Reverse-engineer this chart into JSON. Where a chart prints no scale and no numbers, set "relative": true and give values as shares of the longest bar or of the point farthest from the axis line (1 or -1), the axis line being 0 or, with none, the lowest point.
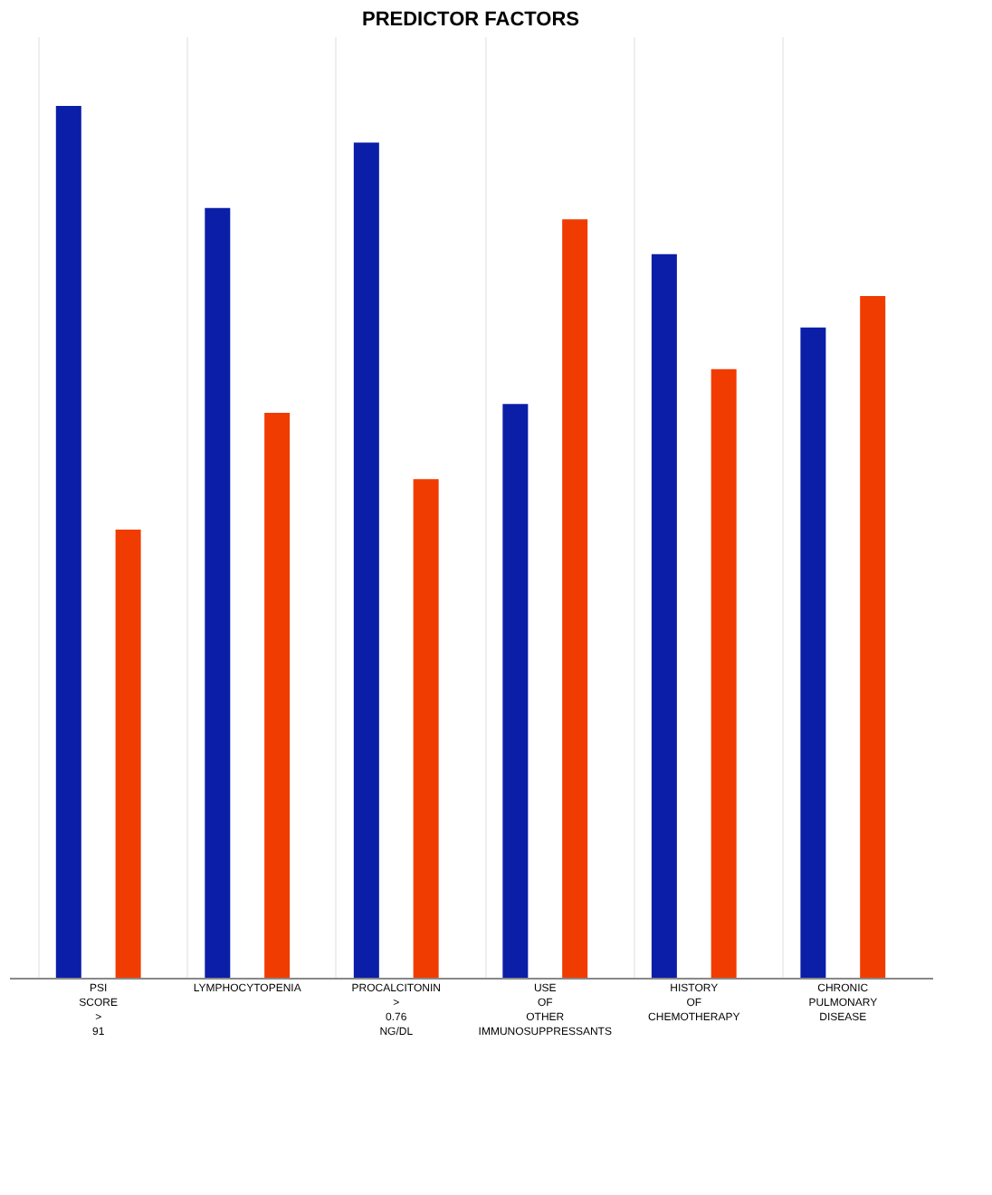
{
  "chart_data": {
    "type": "bar",
    "title": "PREDICTOR FACTORS",
    "relative": true,
    "categories": [
      "PSI SCORE > 91",
      "LYMPHOCYTOPENIA",
      "PROCALCITONIN > 0.76 NG/DL",
      "USE OF OTHER IMMUNOSUPPRESSANTS",
      "HISTORY OF CHEMOTHERAPY",
      "CHRONIC PULMONARY DISEASE"
    ],
    "series": [
      {
        "color": "#0a1ea8",
        "values": [
          1,
          0.883,
          0.958,
          0.658,
          0.83,
          0.746
        ]
      },
      {
        "color": "#f03c00",
        "values": [
          0.514,
          0.648,
          0.572,
          0.87,
          0.698,
          0.782
        ]
      }
    ]
  }
}
